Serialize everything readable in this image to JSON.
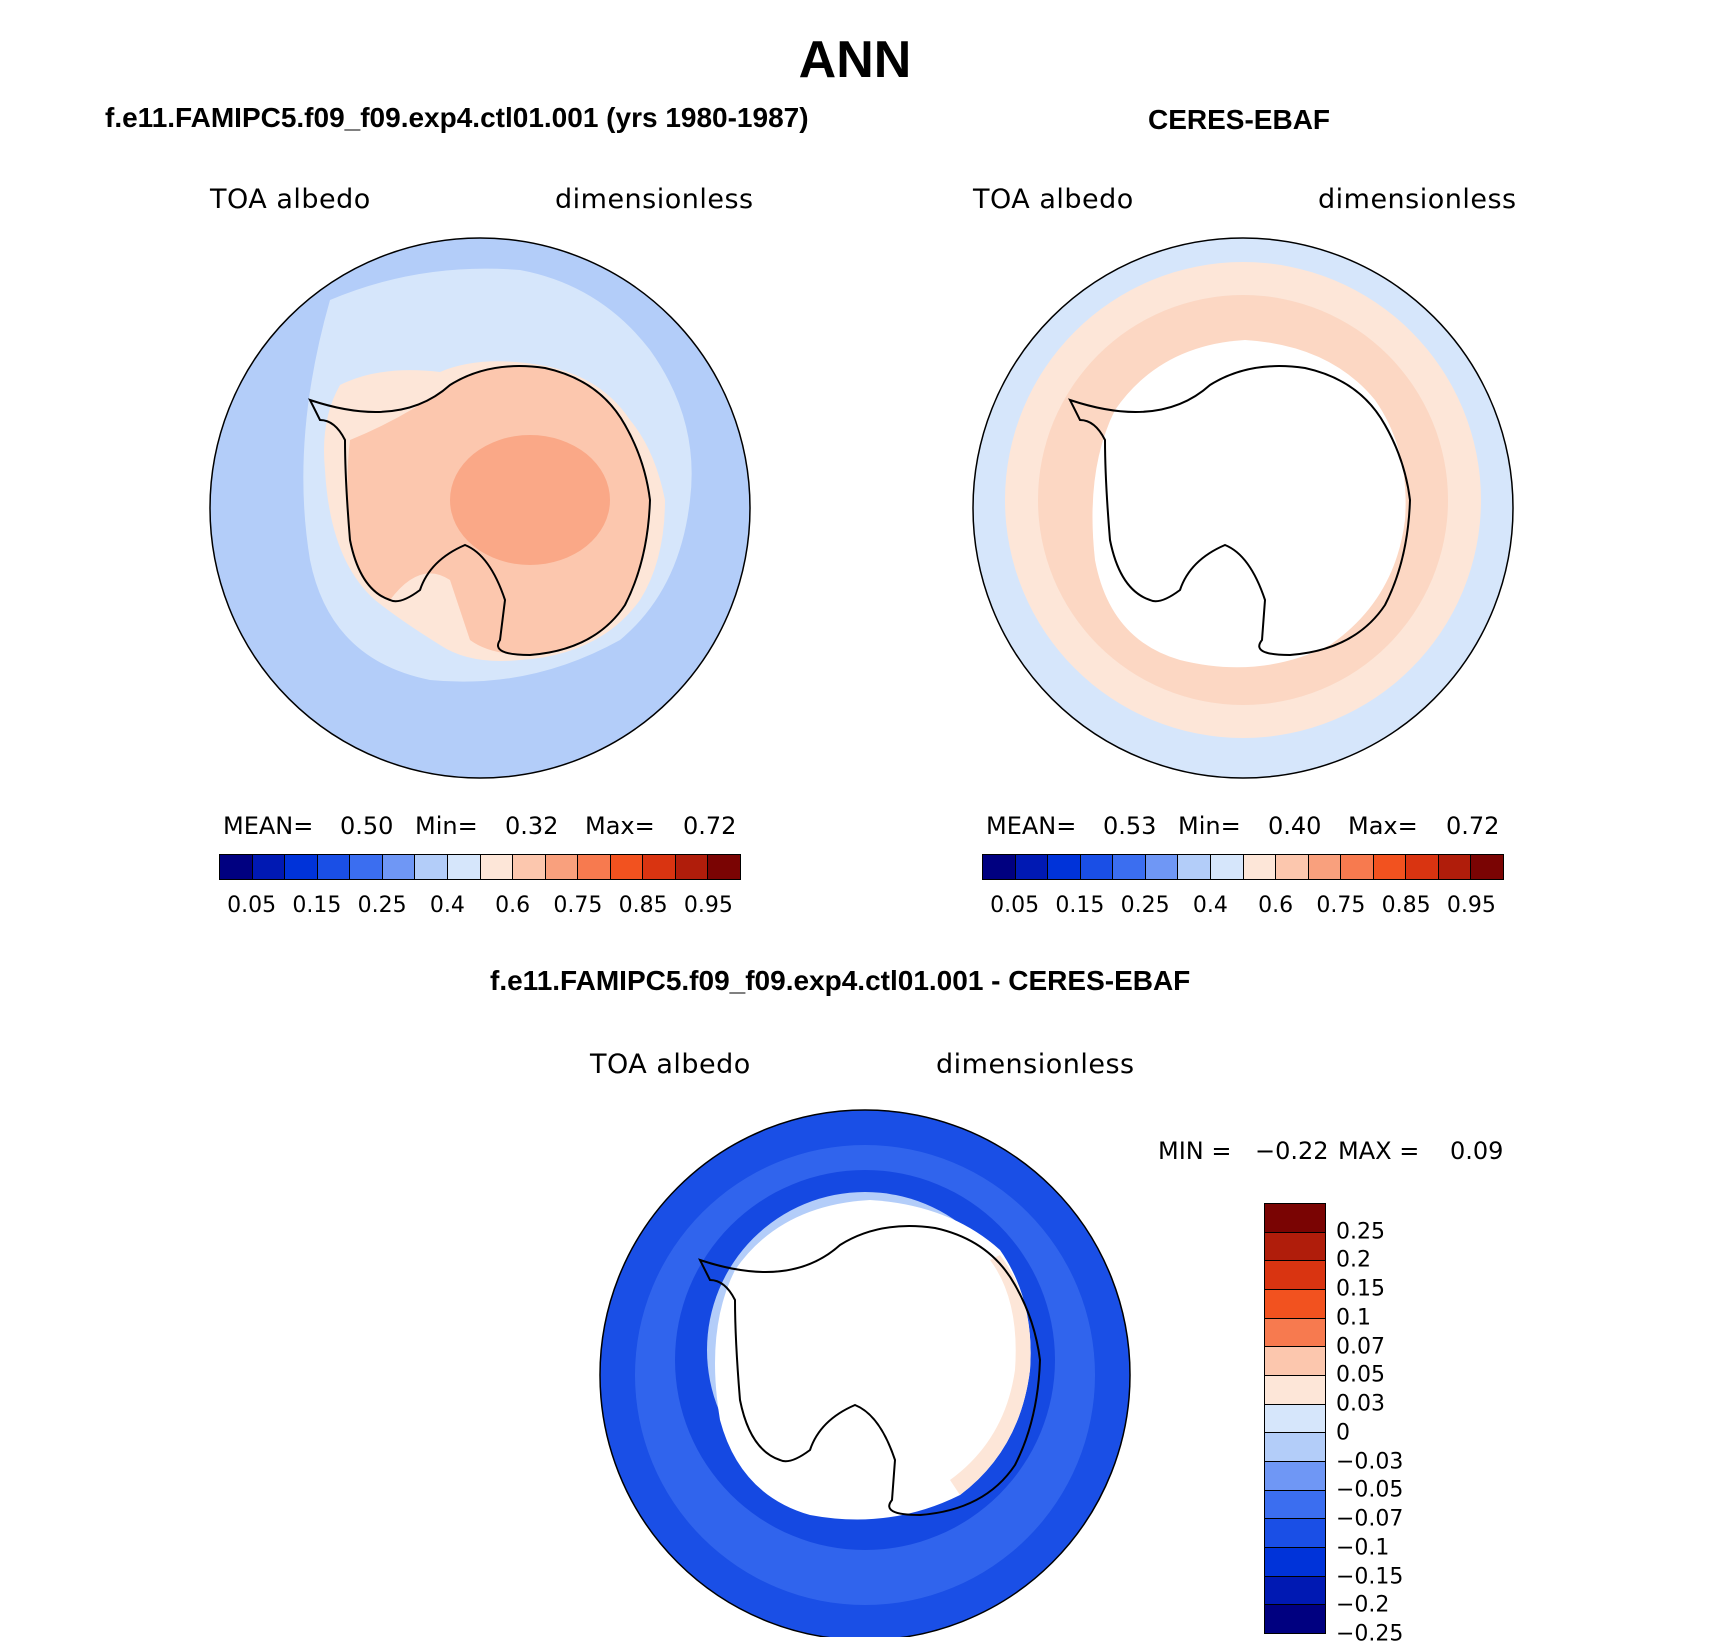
{
  "figure": {
    "title": "ANN"
  },
  "colors": {
    "abs_scale": [
      "#000080",
      "#0019b3",
      "#0033d9",
      "#1a4fe6",
      "#3b6ef0",
      "#6f97f5",
      "#b3cdf9",
      "#d6e6fb",
      "#fde6d8",
      "#fcc7ae",
      "#f9a07d",
      "#f77a4f",
      "#f2521f",
      "#d93411",
      "#b01d0b",
      "#7a0403"
    ],
    "diff_scale": [
      "#7a0403",
      "#b01d0b",
      "#d93411",
      "#f2521f",
      "#f77a4f",
      "#fcc7ae",
      "#fde6d8",
      "#d6e6fb",
      "#b3cdf9",
      "#6f97f5",
      "#3b6ef0",
      "#1a4fe6",
      "#0033d9",
      "#0019b3",
      "#000080"
    ]
  },
  "chart_data": [
    {
      "type": "heatmap",
      "projection": "south-polar-stereographic",
      "title": "f.e11.FAMIPC5.f09_f09.exp4.ctl01.001 (yrs 1980-1987)",
      "left_label": "TOA albedo",
      "right_label": "dimensionless",
      "stats": {
        "mean_label": "MEAN=",
        "mean": "0.50",
        "min_label": "Min=",
        "min": "0.32",
        "max_label": "Max=",
        "max": "0.72"
      },
      "colorbar_ticks": [
        "0.05",
        "0.15",
        "0.25",
        "0.4",
        "0.6",
        "0.75",
        "0.85",
        "0.95"
      ],
      "value_range": [
        0.32,
        0.72
      ]
    },
    {
      "type": "heatmap",
      "projection": "south-polar-stereographic",
      "title": "CERES-EBAF",
      "left_label": "TOA albedo",
      "right_label": "dimensionless",
      "stats": {
        "mean_label": "MEAN=",
        "mean": "0.53",
        "min_label": "Min=",
        "min": "0.40",
        "max_label": "Max=",
        "max": "0.72"
      },
      "colorbar_ticks": [
        "0.05",
        "0.15",
        "0.25",
        "0.4",
        "0.6",
        "0.75",
        "0.85",
        "0.95"
      ],
      "value_range": [
        0.4,
        0.72
      ]
    },
    {
      "type": "heatmap",
      "projection": "south-polar-stereographic",
      "title": "f.e11.FAMIPC5.f09_f09.exp4.ctl01.001 - CERES-EBAF",
      "left_label": "TOA albedo",
      "right_label": "dimensionless",
      "stats": {
        "min_label": "MIN =",
        "min": "−0.22",
        "max_label": "MAX =",
        "max": "0.09"
      },
      "colorbar_ticks": [
        "0.25",
        "0.2",
        "0.15",
        "0.1",
        "0.07",
        "0.05",
        "0.03",
        "0",
        "−0.03",
        "−0.05",
        "−0.07",
        "−0.1",
        "−0.15",
        "−0.2",
        "−0.25"
      ],
      "value_range": [
        -0.22,
        0.09
      ]
    }
  ]
}
